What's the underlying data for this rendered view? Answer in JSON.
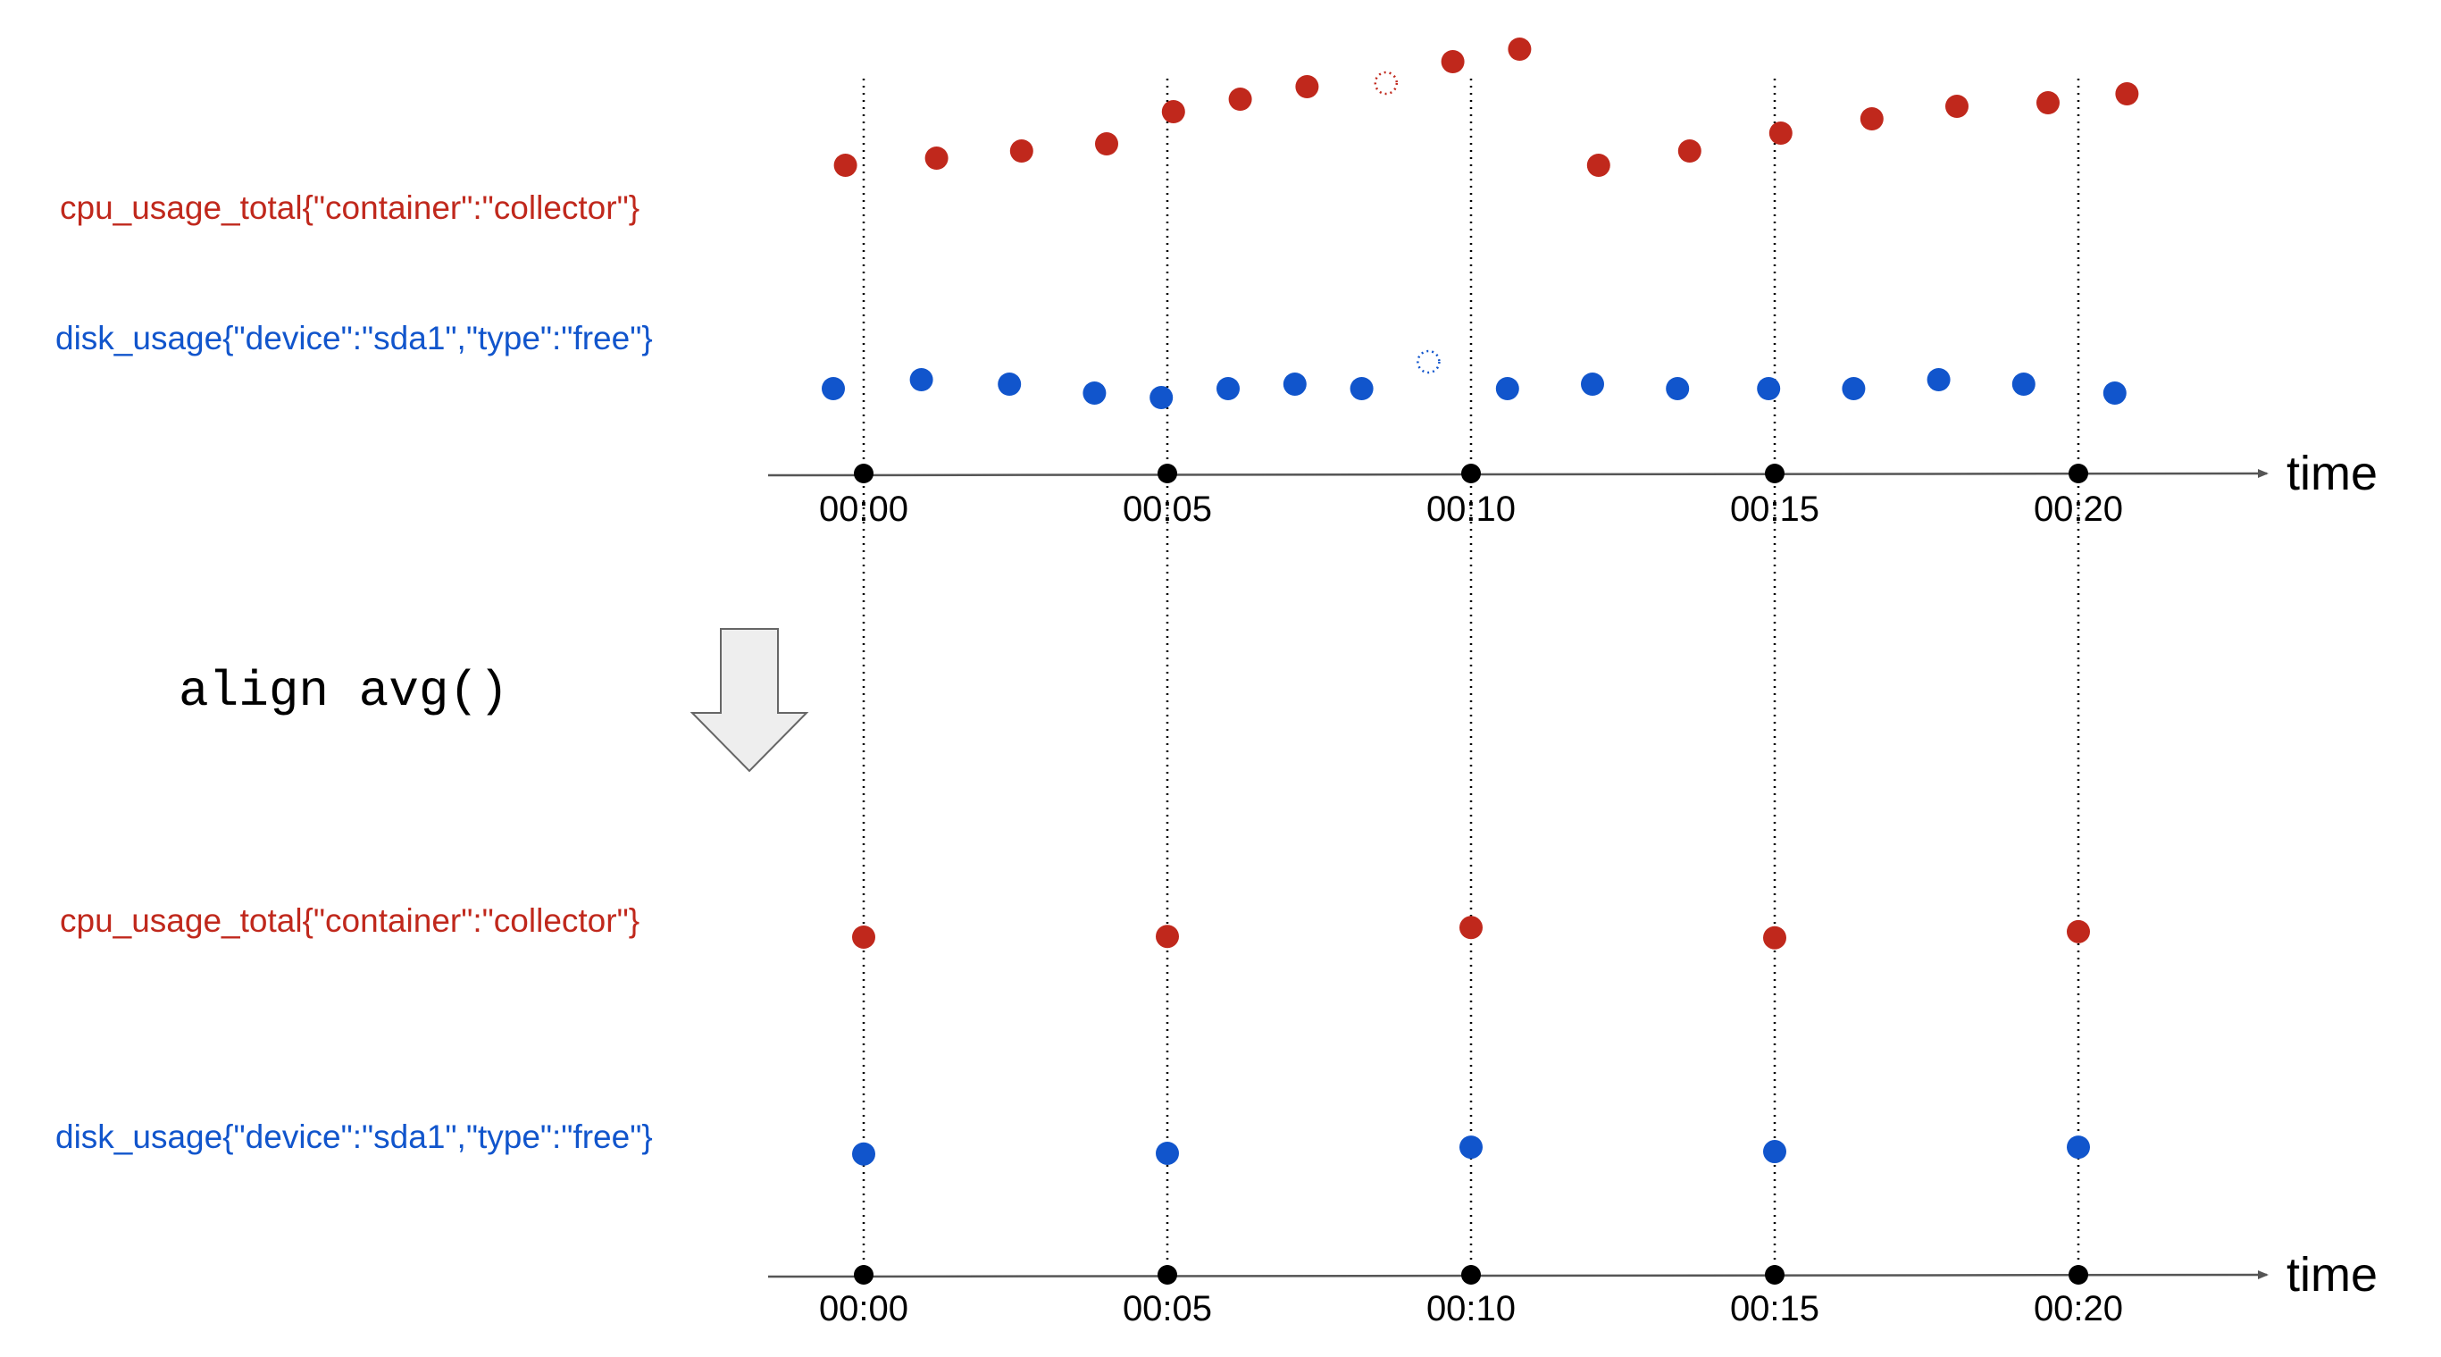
{
  "colors": {
    "cpu": "#c0281c",
    "disk": "#1155cc",
    "axis": "#555555",
    "arrow_fill": "#eeeeee",
    "arrow_stroke": "#666666"
  },
  "time_ticks": [
    "00:00",
    "00:05",
    "00:10",
    "00:15",
    "00:20"
  ],
  "axis_label": "time",
  "operation": "align avg()",
  "top": {
    "cpu_label": "cpu_usage_total{\"container\":\"collector\"}",
    "disk_label": "disk_usage{\"device\":\"sda1\",\"type\":\"free\"}"
  },
  "bottom": {
    "cpu_label": "cpu_usage_total{\"container\":\"collector\"}",
    "disk_label": "disk_usage{\"device\":\"sda1\",\"type\":\"free\"}"
  },
  "chart_data": [
    {
      "type": "scatter",
      "title": "",
      "xlabel": "time",
      "x_unit": "minutes",
      "xlim": [
        -1.5,
        22.5
      ],
      "series": [
        {
          "name": "cpu_usage_total{\"container\":\"collector\"}",
          "points": [
            [
              -0.3,
              40
            ],
            [
              1.2,
              44
            ],
            [
              2.6,
              48
            ],
            [
              4.0,
              52
            ],
            [
              5.1,
              70
            ],
            [
              6.2,
              77
            ],
            [
              7.3,
              84
            ],
            [
              8.6,
              null
            ],
            [
              9.7,
              98
            ],
            [
              10.8,
              105
            ],
            [
              12.1,
              40
            ],
            [
              13.6,
              48
            ],
            [
              15.1,
              58
            ],
            [
              16.6,
              66
            ],
            [
              18.0,
              73
            ],
            [
              19.5,
              75
            ],
            [
              20.8,
              80
            ]
          ],
          "missing_x": [
            8.6
          ],
          "relative_values": true
        },
        {
          "name": "disk_usage{\"device\":\"sda1\",\"type\":\"free\"}",
          "points": [
            [
              -0.5,
              50
            ],
            [
              0.95,
              70
            ],
            [
              2.4,
              60
            ],
            [
              3.8,
              40
            ],
            [
              4.9,
              30
            ],
            [
              6.0,
              50
            ],
            [
              7.1,
              60
            ],
            [
              8.2,
              50
            ],
            [
              9.3,
              null
            ],
            [
              10.6,
              50
            ],
            [
              12.0,
              60
            ],
            [
              13.4,
              50
            ],
            [
              14.9,
              50
            ],
            [
              16.3,
              50
            ],
            [
              17.7,
              70
            ],
            [
              19.1,
              60
            ],
            [
              20.6,
              40
            ]
          ],
          "missing_x": [
            9.3
          ],
          "relative_values": true
        }
      ]
    },
    {
      "type": "scatter",
      "title": "",
      "xlabel": "time",
      "x_unit": "minutes",
      "xlim": [
        -1.5,
        22.5
      ],
      "series": [
        {
          "name": "cpu_usage_total{\"container\":\"collector\"}",
          "points": [
            [
              0,
              42
            ],
            [
              5,
              44
            ],
            [
              10,
              70
            ],
            [
              15,
              40
            ],
            [
              20,
              58
            ]
          ],
          "relative_values": true
        },
        {
          "name": "disk_usage{\"device\":\"sda1\",\"type\":\"free\"}",
          "points": [
            [
              0,
              40
            ],
            [
              5,
              42
            ],
            [
              10,
              60
            ],
            [
              15,
              47
            ],
            [
              20,
              60
            ]
          ],
          "relative_values": true
        }
      ]
    }
  ]
}
